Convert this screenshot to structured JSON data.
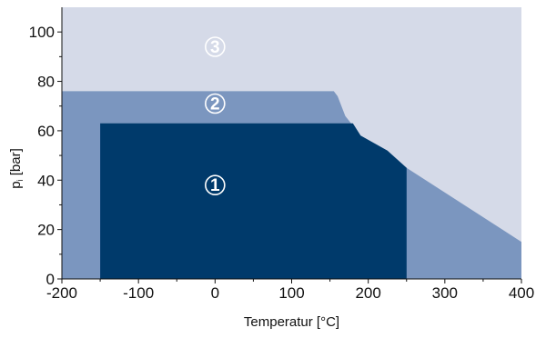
{
  "chart_data": {
    "type": "area",
    "xlabel": "Temperatur [°C]",
    "ylabel": {
      "main": "p",
      "sub": "i",
      "unit": " [bar]"
    },
    "xlim": [
      -200,
      400
    ],
    "ylim": [
      0,
      110
    ],
    "xticks": [
      -200,
      -100,
      0,
      100,
      200,
      300,
      400
    ],
    "yticks": [
      0,
      20,
      40,
      60,
      80,
      100
    ],
    "xtick_labels": [
      "-200",
      "-100",
      "0",
      "100",
      "200",
      "300",
      "400"
    ],
    "ytick_labels": [
      "0",
      "20",
      "40",
      "60",
      "80",
      "100"
    ],
    "grid": false,
    "regions": [
      {
        "id": 3,
        "marker": "3",
        "color": "#d5dae8",
        "label_pos": [
          0,
          94
        ],
        "polygon": [
          [
            -200,
            0
          ],
          [
            400,
            0
          ],
          [
            400,
            110
          ],
          [
            -200,
            110
          ]
        ]
      },
      {
        "id": 2,
        "marker": "2",
        "color": "#7b96bf",
        "label_pos": [
          0,
          71
        ],
        "polygon": [
          [
            -200,
            0
          ],
          [
            400,
            0
          ],
          [
            400,
            15
          ],
          [
            250,
            45
          ],
          [
            225,
            52
          ],
          [
            190,
            58
          ],
          [
            170,
            66
          ],
          [
            160,
            74
          ],
          [
            155,
            76
          ],
          [
            -200,
            76
          ]
        ]
      },
      {
        "id": 1,
        "marker": "1",
        "color": "#003a6b",
        "label_pos": [
          0,
          38
        ],
        "polygon": [
          [
            -150,
            0
          ],
          [
            250,
            0
          ],
          [
            250,
            45
          ],
          [
            225,
            52
          ],
          [
            190,
            58
          ],
          [
            180,
            63
          ],
          [
            -150,
            63
          ]
        ]
      }
    ]
  }
}
